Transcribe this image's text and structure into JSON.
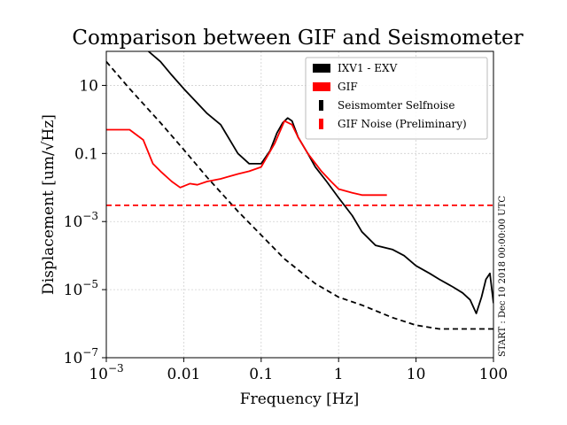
{
  "chart_data": {
    "type": "line",
    "title": "Comparison between GIF and Seismometer",
    "xlabel": "Frequency [Hz]",
    "ylabel": "Displacement [um/√Hz]",
    "xscale": "log",
    "yscale": "log",
    "xlim": [
      0.001,
      100
    ],
    "ylim": [
      1e-07,
      100
    ],
    "grid": true,
    "legend_position": "top-right",
    "x_ticks": [
      {
        "value": 0.001,
        "base": "10",
        "exp": "−3"
      },
      {
        "value": 0.01,
        "label": "0.01"
      },
      {
        "value": 0.1,
        "label": "0.1"
      },
      {
        "value": 1,
        "label": "1"
      },
      {
        "value": 10,
        "label": "10"
      },
      {
        "value": 100,
        "label": "100"
      }
    ],
    "y_ticks": [
      {
        "value": 1e-07,
        "base": "10",
        "exp": "−7"
      },
      {
        "value": 1e-05,
        "base": "10",
        "exp": "−5"
      },
      {
        "value": 0.001,
        "base": "10",
        "exp": "−3"
      },
      {
        "value": 0.1,
        "label": "0.1"
      },
      {
        "value": 10,
        "label": "10"
      }
    ],
    "annotation": "START : Dec 10 2018 00:00:00 UTC",
    "series": [
      {
        "name": "IXV1 - EXV",
        "color": "#000000",
        "style": "solid",
        "legend_marker": "box",
        "x": [
          0.0035,
          0.005,
          0.007,
          0.01,
          0.015,
          0.02,
          0.03,
          0.05,
          0.07,
          0.1,
          0.13,
          0.16,
          0.19,
          0.22,
          0.25,
          0.3,
          0.4,
          0.5,
          0.7,
          1.0,
          1.5,
          2,
          3,
          5,
          7,
          10,
          15,
          20,
          30,
          40,
          50,
          60,
          70,
          80,
          90,
          100
        ],
        "y": [
          100,
          50,
          20,
          8,
          3,
          1.5,
          0.7,
          0.1,
          0.05,
          0.05,
          0.12,
          0.4,
          0.8,
          1.1,
          0.9,
          0.3,
          0.1,
          0.04,
          0.015,
          0.005,
          0.0015,
          0.0005,
          0.0002,
          0.00015,
          0.0001,
          5e-05,
          3e-05,
          2e-05,
          1.2e-05,
          8e-06,
          5e-06,
          2e-06,
          6e-06,
          2e-05,
          3e-05,
          4e-06
        ]
      },
      {
        "name": "GIF",
        "color": "#ff0000",
        "style": "solid",
        "legend_marker": "box",
        "x": [
          0.001,
          0.002,
          0.003,
          0.004,
          0.005,
          0.007,
          0.009,
          0.012,
          0.015,
          0.02,
          0.03,
          0.05,
          0.07,
          0.1,
          0.15,
          0.2,
          0.25,
          0.3,
          0.4,
          0.6,
          0.8,
          1.0,
          1.5,
          2,
          3,
          4.2
        ],
        "y": [
          0.5,
          0.5,
          0.25,
          0.05,
          0.03,
          0.015,
          0.01,
          0.013,
          0.012,
          0.015,
          0.018,
          0.025,
          0.03,
          0.04,
          0.2,
          0.9,
          0.7,
          0.3,
          0.1,
          0.03,
          0.015,
          0.009,
          0.007,
          0.006,
          0.006,
          0.006
        ]
      },
      {
        "name": "Seismomter Selfnoise",
        "color": "#000000",
        "style": "dashed",
        "legend_marker": "bar",
        "x": [
          0.001,
          0.002,
          0.005,
          0.01,
          0.02,
          0.05,
          0.1,
          0.2,
          0.5,
          1,
          2,
          5,
          10,
          20,
          50,
          100
        ],
        "y": [
          50,
          8,
          0.8,
          0.13,
          0.02,
          0.002,
          0.0004,
          8e-05,
          1.5e-05,
          6e-06,
          3.5e-06,
          1.5e-06,
          9e-07,
          7e-07,
          7e-07,
          7e-07
        ]
      },
      {
        "name": "GIF Noise (Preliminary)",
        "color": "#ff0000",
        "style": "dashed",
        "legend_marker": "bar",
        "x": [
          0.001,
          100
        ],
        "y": [
          0.003,
          0.003
        ]
      }
    ]
  }
}
